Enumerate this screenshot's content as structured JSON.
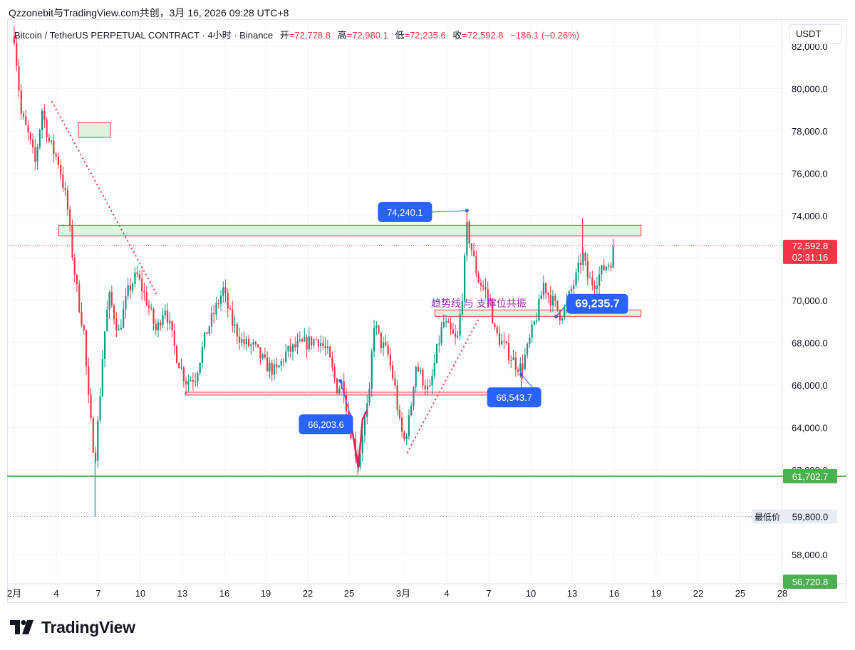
{
  "header": {
    "title": "Qzzonebit与TradingView.com共创，3月 16, 2026 09:28 UTC+8"
  },
  "symbol": {
    "name": "Bitcoin / TetherUS PERPETUAL CONTRACT · 4小时 · Binance",
    "open_label": "开",
    "open": "=72,778.8",
    "high_label": "高",
    "high": "=72,980.1",
    "low_label": "低",
    "low": "=72,235.6",
    "close_label": "收",
    "close": "=72,592.8",
    "change": "−186.1 (−0.26%)"
  },
  "unit": "USDT",
  "brand": {
    "name": "TradingView"
  },
  "colors": {
    "up": "#089981",
    "down": "#f23645",
    "support": "#4caf50",
    "callout": "#2962ff",
    "note": "#9c27b0",
    "zone_fill": "#e0f1de",
    "zone_border": "#f23645"
  },
  "chart_data": {
    "type": "candlestick",
    "ylim": [
      56000,
      83000
    ],
    "y_ticks": [
      "82,000.0",
      "80,000.0",
      "78,000.0",
      "76,000.0",
      "74,000.0",
      "72,000.0",
      "70,000.0",
      "68,000.0",
      "66,000.0",
      "64,000.0",
      "62,000.0",
      "60,000.0",
      "58,000.0"
    ],
    "x_ticks": [
      "2月",
      "4",
      "7",
      "10",
      "13",
      "16",
      "19",
      "22",
      "25",
      "3月",
      "4",
      "7",
      "10",
      "13",
      "16",
      "19",
      "22",
      "25",
      "28"
    ],
    "price_path": [
      {
        "t": 0.0,
        "p": 82500
      },
      {
        "t": 0.5,
        "p": 78800
      },
      {
        "t": 1.0,
        "p": 77800
      },
      {
        "t": 1.5,
        "p": 76500
      },
      {
        "t": 2.0,
        "p": 79000
      },
      {
        "t": 2.5,
        "p": 77500
      },
      {
        "t": 3.2,
        "p": 76500
      },
      {
        "t": 3.8,
        "p": 74500
      },
      {
        "t": 4.2,
        "p": 72000
      },
      {
        "t": 4.6,
        "p": 70000
      },
      {
        "t": 5.0,
        "p": 68500
      },
      {
        "t": 5.3,
        "p": 65500
      },
      {
        "t": 5.6,
        "p": 63500
      },
      {
        "t": 5.8,
        "p": 62500
      },
      {
        "t": 6.1,
        "p": 65000
      },
      {
        "t": 6.4,
        "p": 68000
      },
      {
        "t": 6.8,
        "p": 70200
      },
      {
        "t": 7.5,
        "p": 68500
      },
      {
        "t": 8.2,
        "p": 70500
      },
      {
        "t": 8.8,
        "p": 71200
      },
      {
        "t": 9.5,
        "p": 70000
      },
      {
        "t": 10.2,
        "p": 68500
      },
      {
        "t": 10.8,
        "p": 69800
      },
      {
        "t": 11.6,
        "p": 67500
      },
      {
        "t": 12.3,
        "p": 66200
      },
      {
        "t": 13.0,
        "p": 66400
      },
      {
        "t": 13.8,
        "p": 68500
      },
      {
        "t": 14.4,
        "p": 69500
      },
      {
        "t": 15.0,
        "p": 70500
      },
      {
        "t": 15.6,
        "p": 69000
      },
      {
        "t": 16.4,
        "p": 68000
      },
      {
        "t": 17.2,
        "p": 67800
      },
      {
        "t": 18.0,
        "p": 67000
      },
      {
        "t": 18.8,
        "p": 66600
      },
      {
        "t": 19.5,
        "p": 67500
      },
      {
        "t": 20.2,
        "p": 67800
      },
      {
        "t": 21.0,
        "p": 68000
      },
      {
        "t": 21.8,
        "p": 68200
      },
      {
        "t": 22.5,
        "p": 67500
      },
      {
        "t": 23.2,
        "p": 65800
      },
      {
        "t": 23.6,
        "p": 66200
      },
      {
        "t": 24.0,
        "p": 64300
      },
      {
        "t": 24.4,
        "p": 63200
      },
      {
        "t": 24.7,
        "p": 62200
      },
      {
        "t": 25.0,
        "p": 63800
      },
      {
        "t": 25.5,
        "p": 65500
      },
      {
        "t": 25.8,
        "p": 69000
      },
      {
        "t": 26.3,
        "p": 68000
      },
      {
        "t": 26.8,
        "p": 67500
      },
      {
        "t": 27.3,
        "p": 66000
      },
      {
        "t": 27.7,
        "p": 64000
      },
      {
        "t": 28.0,
        "p": 63400
      },
      {
        "t": 28.4,
        "p": 64500
      },
      {
        "t": 28.8,
        "p": 67000
      },
      {
        "t": 29.3,
        "p": 66300
      },
      {
        "t": 29.8,
        "p": 65600
      },
      {
        "t": 30.3,
        "p": 67500
      },
      {
        "t": 30.8,
        "p": 69000
      },
      {
        "t": 31.3,
        "p": 68500
      },
      {
        "t": 31.8,
        "p": 68000
      },
      {
        "t": 32.2,
        "p": 70500
      },
      {
        "t": 32.5,
        "p": 73400
      },
      {
        "t": 32.8,
        "p": 72500
      },
      {
        "t": 33.3,
        "p": 71000
      },
      {
        "t": 33.8,
        "p": 70500
      },
      {
        "t": 34.2,
        "p": 69800
      },
      {
        "t": 34.5,
        "p": 68500
      },
      {
        "t": 35.0,
        "p": 68000
      },
      {
        "t": 35.5,
        "p": 67500
      },
      {
        "t": 36.0,
        "p": 67000
      },
      {
        "t": 36.4,
        "p": 66800
      },
      {
        "t": 36.8,
        "p": 67600
      },
      {
        "t": 37.2,
        "p": 68600
      },
      {
        "t": 37.6,
        "p": 69500
      },
      {
        "t": 38.0,
        "p": 70800
      },
      {
        "t": 38.4,
        "p": 70200
      },
      {
        "t": 38.8,
        "p": 69800
      },
      {
        "t": 39.2,
        "p": 69300
      },
      {
        "t": 39.6,
        "p": 69700
      },
      {
        "t": 40.0,
        "p": 70500
      },
      {
        "t": 40.4,
        "p": 71200
      },
      {
        "t": 40.8,
        "p": 72200
      },
      {
        "t": 41.2,
        "p": 71000
      },
      {
        "t": 41.6,
        "p": 70800
      },
      {
        "t": 42.0,
        "p": 71200
      },
      {
        "t": 42.4,
        "p": 71600
      },
      {
        "t": 42.8,
        "p": 71800
      },
      {
        "t": 43.1,
        "p": 72600
      }
    ],
    "wicks": [
      {
        "t": 5.8,
        "low": 59800
      },
      {
        "t": 32.5,
        "high": 74240.1
      },
      {
        "t": 40.8,
        "high": 73900
      },
      {
        "t": 24.7,
        "low": 61900
      },
      {
        "t": 36.4,
        "low": 65800
      }
    ],
    "last_price": "72,592.8",
    "countdown": "02:31:16",
    "price_labels": [
      {
        "text": "61,702.7",
        "kind": "green"
      },
      {
        "text": "59,800.0",
        "kind": "low"
      },
      {
        "text": "56,720.8",
        "kind": "green"
      }
    ],
    "low_tag": "最低价",
    "zones": [
      {
        "p1": 73550,
        "p2": 73050,
        "t1": 3.2,
        "t2": 45.0
      },
      {
        "p1": 69550,
        "p2": 69250,
        "t1": 30.2,
        "t2": 45.0
      },
      {
        "p1": 78400,
        "p2": 77700,
        "t1": 4.6,
        "t2": 6.9
      }
    ],
    "support_lines": [
      {
        "p": 61702.7,
        "style": "solid-green"
      },
      {
        "p": 65600,
        "t1": 12.3,
        "t2": 37.8,
        "style": "red-band"
      },
      {
        "p": 59800,
        "style": "dotted-gray"
      }
    ],
    "trendlines": [
      {
        "t1": 2.7,
        "p1": 79400,
        "t2": 10.3,
        "p2": 70200
      },
      {
        "t1": 28.2,
        "p1": 62800,
        "t2": 33.4,
        "p2": 69200
      }
    ],
    "callouts": [
      {
        "text": "74,240.1",
        "t": 32.5,
        "p": 74240.1
      },
      {
        "text": "66,203.6",
        "t": 23.4,
        "p": 66200
      },
      {
        "text": "66,543.7",
        "t": 36.4,
        "p": 66500
      },
      {
        "text": "69,235.7",
        "t": 38.9,
        "p": 69235.7
      }
    ],
    "note": "趋势线 与 支撑位共振"
  }
}
